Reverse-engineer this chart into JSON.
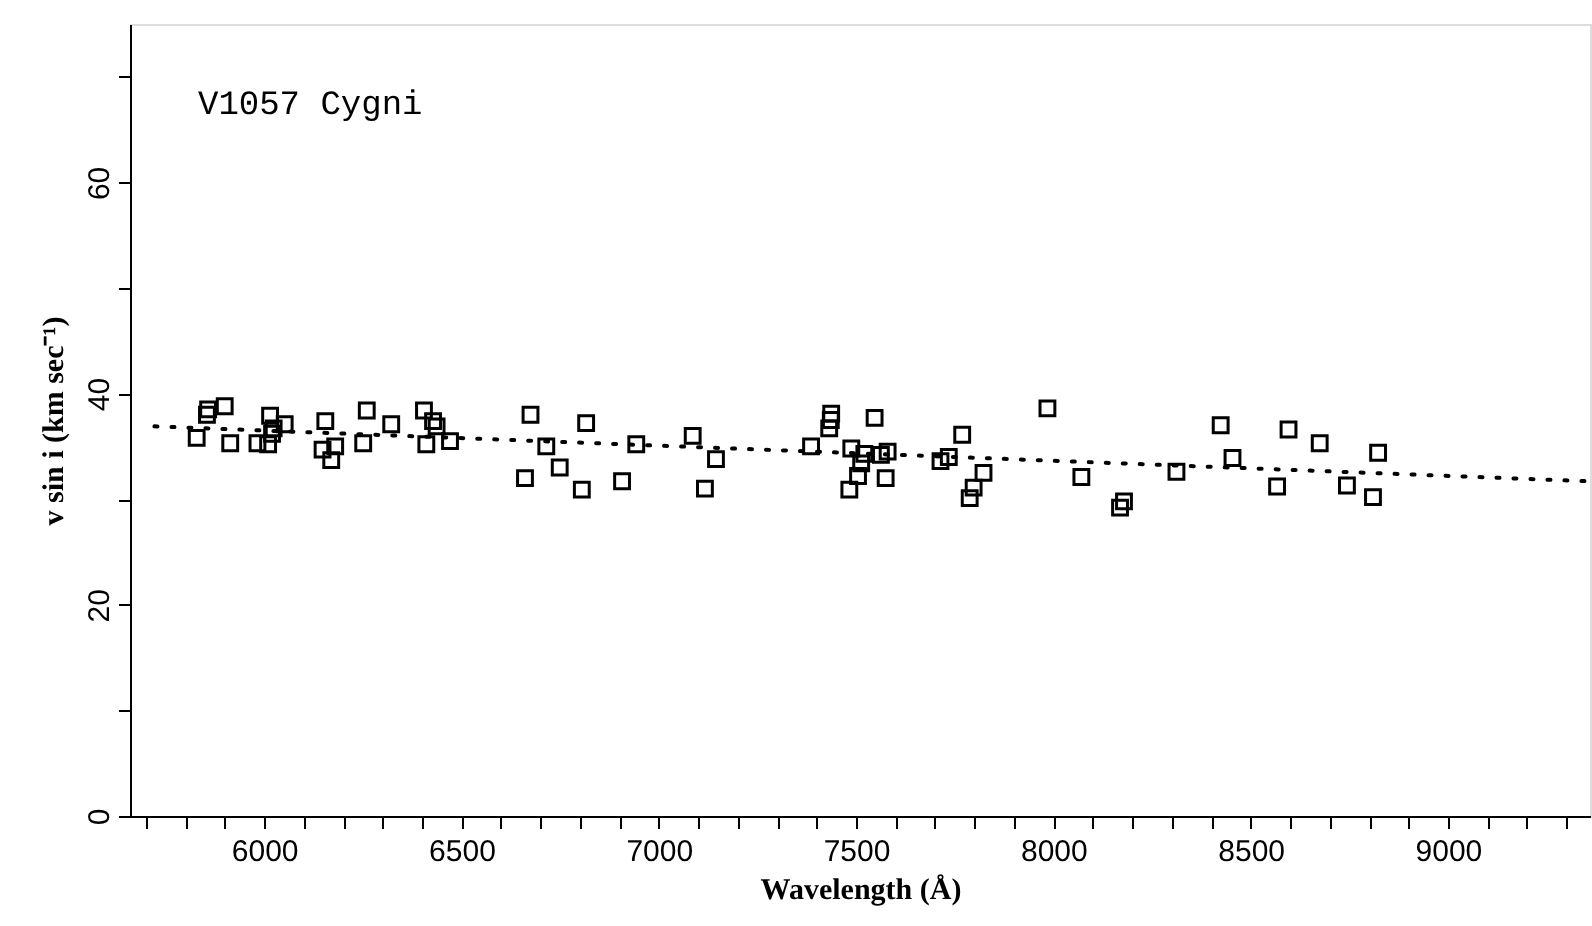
{
  "chart_data": {
    "type": "scatter",
    "xlabel": "Wavelength (Å)",
    "ylabel": "v sin i (km sec⁻¹)",
    "annotations": [
      "V1057 Cygni"
    ],
    "xlim": [
      5660,
      9360
    ],
    "ylim": [
      0,
      75
    ],
    "xticks": [
      {
        "value": 5700,
        "label": null
      },
      {
        "value": 5800,
        "label": null
      },
      {
        "value": 5900,
        "label": null
      },
      6000,
      {
        "value": 6100,
        "label": null
      },
      {
        "value": 6200,
        "label": null
      },
      {
        "value": 6300,
        "label": null
      },
      {
        "value": 6400,
        "label": null
      },
      6500,
      {
        "value": 6600,
        "label": null
      },
      {
        "value": 6700,
        "label": null
      },
      {
        "value": 6800,
        "label": null
      },
      {
        "value": 6900,
        "label": null
      },
      7000,
      {
        "value": 7100,
        "label": null
      },
      {
        "value": 7200,
        "label": null
      },
      {
        "value": 7300,
        "label": null
      },
      {
        "value": 7400,
        "label": null
      },
      7500,
      {
        "value": 7600,
        "label": null
      },
      {
        "value": 7700,
        "label": null
      },
      {
        "value": 7800,
        "label": null
      },
      {
        "value": 7900,
        "label": null
      },
      8000,
      {
        "value": 8100,
        "label": null
      },
      {
        "value": 8200,
        "label": null
      },
      {
        "value": 8300,
        "label": null
      },
      {
        "value": 8400,
        "label": null
      },
      8500,
      {
        "value": 8600,
        "label": null
      },
      {
        "value": 8700,
        "label": null
      },
      {
        "value": 8800,
        "label": null
      },
      {
        "value": 8900,
        "label": null
      },
      9000,
      {
        "value": 9100,
        "label": null
      },
      {
        "value": 9200,
        "label": null
      },
      {
        "value": 9300,
        "label": null
      }
    ],
    "yticks": [
      0,
      {
        "value": 10,
        "label": null
      },
      20,
      {
        "value": 30,
        "label": null
      },
      40,
      {
        "value": 50,
        "label": null
      },
      60,
      {
        "value": 70,
        "label": null
      }
    ],
    "grid": false,
    "series": [
      {
        "color": "#000000",
        "marker": "square",
        "x": [
          5829,
          5855,
          5858,
          5900,
          5914,
          5983,
          6015,
          6020,
          6010,
          6024,
          6052,
          6155,
          6148,
          6180,
          6170,
          6251,
          6260,
          6322,
          6405,
          6411,
          6428,
          6437,
          6471,
          6661,
          6675,
          6715,
          6749,
          6805,
          6816,
          6907,
          6943,
          7086,
          7117,
          7145,
          7386,
          7437,
          7436,
          7432,
          7547,
          7488,
          7521,
          7513,
          7505,
          7483,
          7563,
          7580,
          7575,
          7714,
          7735,
          7769,
          7823,
          7798,
          7788,
          7985,
          8071,
          8179,
          8169,
          8312,
          8424,
          8454,
          8567,
          8596,
          8675,
          8744,
          8823,
          8810
        ],
        "values": [
          35.8,
          38.0,
          38.5,
          38.8,
          35.3,
          35.3,
          37.9,
          36.2,
          35.2,
          36.7,
          37.1,
          37.4,
          34.7,
          35.0,
          33.7,
          35.3,
          38.4,
          37.1,
          38.4,
          35.2,
          37.4,
          36.9,
          35.5,
          32.0,
          38.0,
          35.0,
          33.0,
          30.9,
          37.2,
          31.7,
          35.2,
          36.0,
          31.0,
          33.8,
          35.0,
          38.1,
          37.5,
          36.7,
          37.7,
          34.8,
          34.3,
          33.4,
          32.2,
          30.9,
          34.2,
          34.5,
          32.0,
          33.6,
          34.0,
          36.1,
          32.5,
          31.1,
          30.1,
          38.6,
          32.1,
          29.8,
          29.2,
          32.6,
          37.0,
          33.9,
          31.2,
          36.6,
          35.3,
          31.3,
          34.4,
          30.2
        ]
      },
      {
        "type": "line",
        "color": "#000000",
        "line_style": "dotted",
        "marker": "none",
        "x": [
          5722,
          9355
        ],
        "values": [
          36.9,
          31.7
        ]
      }
    ]
  }
}
